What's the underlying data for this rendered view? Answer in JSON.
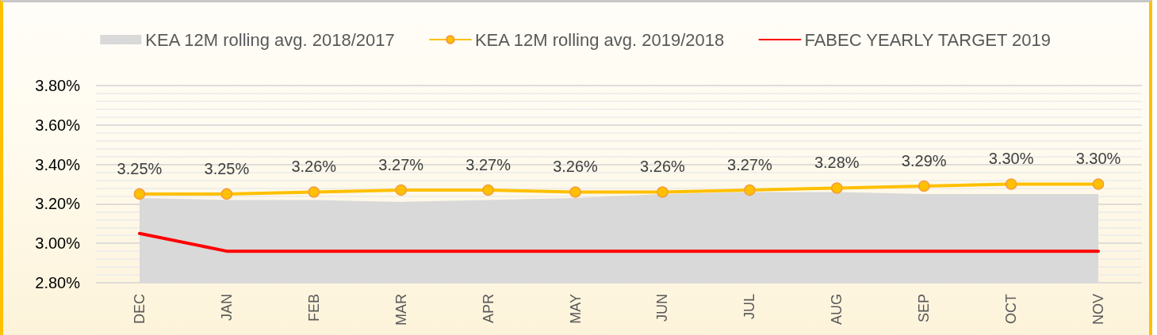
{
  "chart_data": {
    "type": "line",
    "categories": [
      "DEC",
      "JAN",
      "FEB",
      "MAR",
      "APR",
      "MAY",
      "JUN",
      "JUL",
      "AUG",
      "SEP",
      "OCT",
      "NOV"
    ],
    "series": [
      {
        "name": "KEA 12M rolling avg. 2018/2017",
        "type": "area",
        "color": "#d9d9d9",
        "marker": "none",
        "values": [
          3.23,
          3.22,
          3.22,
          3.21,
          3.22,
          3.23,
          3.25,
          3.26,
          3.26,
          3.25,
          3.25,
          3.25
        ]
      },
      {
        "name": "KEA 12M rolling avg. 2019/2018",
        "type": "line",
        "color": "#ffc000",
        "marker": "circle",
        "values": [
          3.25,
          3.25,
          3.26,
          3.27,
          3.27,
          3.26,
          3.26,
          3.27,
          3.28,
          3.29,
          3.3,
          3.3
        ],
        "value_labels": [
          "3.25%",
          "3.25%",
          "3.26%",
          "3.27%",
          "3.27%",
          "3.26%",
          "3.26%",
          "3.27%",
          "3.28%",
          "3.29%",
          "3.30%",
          "3.30%"
        ]
      },
      {
        "name": "FABEC YEARLY TARGET 2019",
        "type": "line",
        "color": "#ff0000",
        "marker": "none",
        "values": [
          3.05,
          2.96,
          2.96,
          2.96,
          2.96,
          2.96,
          2.96,
          2.96,
          2.96,
          2.96,
          2.96,
          2.96
        ]
      }
    ],
    "ylim": [
      2.8,
      3.8
    ],
    "yticks": [
      {
        "value": 2.8,
        "label": "2.80%"
      },
      {
        "value": 2.84,
        "label": null
      },
      {
        "value": 2.88,
        "label": null
      },
      {
        "value": 2.92,
        "label": null
      },
      {
        "value": 2.96,
        "label": null
      },
      {
        "value": 3.0,
        "label": "3.00%"
      },
      {
        "value": 3.04,
        "label": null
      },
      {
        "value": 3.08,
        "label": null
      },
      {
        "value": 3.12,
        "label": null
      },
      {
        "value": 3.16,
        "label": null
      },
      {
        "value": 3.2,
        "label": "3.20%"
      },
      {
        "value": 3.24,
        "label": null
      },
      {
        "value": 3.28,
        "label": null
      },
      {
        "value": 3.32,
        "label": null
      },
      {
        "value": 3.36,
        "label": null
      },
      {
        "value": 3.4,
        "label": "3.40%"
      },
      {
        "value": 3.44,
        "label": null
      },
      {
        "value": 3.48,
        "label": null
      },
      {
        "value": 3.52,
        "label": null
      },
      {
        "value": 3.56,
        "label": null
      },
      {
        "value": 3.6,
        "label": "3.60%"
      },
      {
        "value": 3.64,
        "label": null
      },
      {
        "value": 3.68,
        "label": null
      },
      {
        "value": 3.72,
        "label": null
      },
      {
        "value": 3.76,
        "label": null
      },
      {
        "value": 3.8,
        "label": "3.80%"
      }
    ],
    "grid": "y",
    "legend": "top"
  }
}
